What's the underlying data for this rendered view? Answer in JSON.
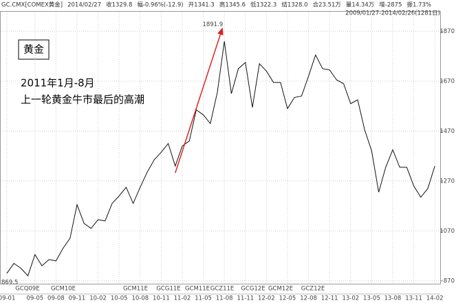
{
  "chart_data": {
    "type": "line",
    "header": [
      "GC.CMX[COMEX黄金]",
      "2014/02/27",
      "收1329.8",
      "幅-0.96%(-12.9)",
      "开1341.3",
      "高1345.6",
      "低1322.3",
      "结1328.0",
      "合23.51万",
      "量14.34万",
      "增-2875",
      "振1.73%"
    ],
    "range_label": "2009/01/27-2014/02/26(1281日)",
    "title": "黄金",
    "annotation_lines": [
      "2011年1月-8月",
      "上一轮黄金牛市最后的高潮"
    ],
    "high": 1891.9,
    "low": 869.5,
    "contracts": [
      "GCQ09E",
      "GCM10E",
      "GCM11E",
      "GCG11E",
      "GCM11E",
      "GCZ11E",
      "GCG12E",
      "GCM12E",
      "GCZ12E"
    ],
    "categories": [
      "09-01",
      null,
      null,
      null,
      "09-05",
      null,
      null,
      "09-08",
      null,
      null,
      "09-11",
      null,
      null,
      "10-02",
      null,
      null,
      "10-05",
      null,
      null,
      "10-08",
      null,
      null,
      "10-11",
      null,
      null,
      "11-02",
      null,
      null,
      "11-05",
      null,
      null,
      "11-08",
      null,
      null,
      "11-11",
      null,
      null,
      "12-02",
      null,
      null,
      "12-05",
      null,
      null,
      "12-08",
      null,
      null,
      "12-11",
      null,
      null,
      "13-02",
      null,
      null,
      "13-05",
      null,
      null,
      "13-08",
      null,
      null,
      "13-11",
      null,
      null,
      "14-02"
    ],
    "series": [
      {
        "name": "GC.CMX",
        "color": "#111111",
        "values": [
          900,
          940,
          920,
          890,
          975,
          930,
          955,
          950,
          1000,
          1040,
          1175,
          1100,
          1080,
          1115,
          1110,
          1180,
          1210,
          1245,
          1180,
          1245,
          1305,
          1355,
          1385,
          1420,
          1330,
          1410,
          1430,
          1555,
          1535,
          1500,
          1625,
          1830,
          1620,
          1720,
          1745,
          1565,
          1740,
          1710,
          1665,
          1665,
          1560,
          1605,
          1610,
          1690,
          1775,
          1720,
          1715,
          1675,
          1660,
          1580,
          1595,
          1475,
          1390,
          1225,
          1325,
          1395,
          1325,
          1325,
          1250,
          1205,
          1240,
          1330
        ]
      }
    ],
    "ylim": [
      850,
      1940
    ],
    "yticks": [
      870,
      1070,
      1270,
      1470,
      1670,
      1870
    ],
    "grid": true,
    "arrow_color": "#e02020"
  }
}
